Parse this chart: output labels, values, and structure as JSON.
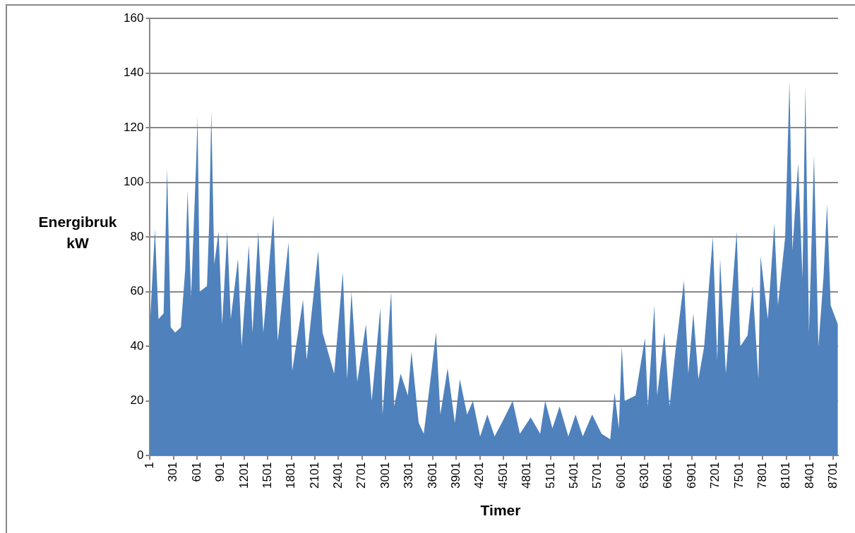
{
  "chart_data": {
    "type": "area",
    "xlabel": "Timer",
    "ylabel": "Energibruk kW",
    "xlim": [
      1,
      8760
    ],
    "xticks": [
      1,
      301,
      601,
      901,
      1201,
      1501,
      1801,
      2101,
      2401,
      2701,
      3001,
      3301,
      3601,
      3901,
      4201,
      4501,
      4801,
      5101,
      5401,
      5701,
      6001,
      6301,
      6601,
      6901,
      7201,
      7501,
      7801,
      8101,
      8401,
      8701
    ],
    "ylim": [
      0,
      160
    ],
    "yticks": [
      0,
      20,
      40,
      60,
      80,
      100,
      120,
      140,
      160
    ],
    "grid": "y",
    "legend": false,
    "series": [
      {
        "color": "#4f81bd",
        "x": [
          1,
          65,
          110,
          175,
          220,
          265,
          322,
          395,
          450,
          480,
          525,
          590,
          607,
          635,
          727,
          755,
          782,
          820,
          875,
          920,
          985,
          1030,
          1122,
          1168,
          1260,
          1306,
          1380,
          1444,
          1573,
          1628,
          1766,
          1812,
          1950,
          1996,
          2143,
          2198,
          2346,
          2456,
          2511,
          2566,
          2640,
          2750,
          2824,
          2934,
          2962,
          3072,
          3109,
          3192,
          3284,
          3330,
          3422,
          3486,
          3560,
          3643,
          3698,
          3790,
          3882,
          3946,
          4038,
          4112,
          4204,
          4296,
          4388,
          4480,
          4618,
          4710,
          4848,
          4968,
          5032,
          5124,
          5216,
          5327,
          5419,
          5511,
          5630,
          5750,
          5860,
          5915,
          5970,
          6007,
          6044,
          6182,
          6302,
          6339,
          6422,
          6458,
          6550,
          6615,
          6689,
          6799,
          6854,
          6918,
          6983,
          7056,
          7166,
          7222,
          7259,
          7332,
          7470,
          7516,
          7608,
          7673,
          7746,
          7774,
          7866,
          7949,
          7995,
          8087,
          8142,
          8179,
          8252,
          8307,
          8344,
          8390,
          8454,
          8510,
          8574,
          8620,
          8666,
          8758
        ],
        "values": [
          48,
          83,
          50,
          52,
          105,
          47,
          45,
          47,
          68,
          97,
          58,
          108,
          124,
          60,
          62,
          85,
          126,
          70,
          82,
          48,
          82,
          50,
          72,
          40,
          77,
          45,
          82,
          45,
          88,
          42,
          78,
          31,
          57,
          35,
          75,
          45,
          30,
          67,
          28,
          60,
          27,
          48,
          20,
          54,
          15,
          60,
          18,
          30,
          22,
          38,
          12,
          8,
          25,
          45,
          15,
          32,
          12,
          28,
          15,
          20,
          7,
          15,
          7,
          12,
          20,
          8,
          14,
          8,
          20,
          10,
          18,
          7,
          15,
          7,
          15,
          8,
          6,
          23,
          10,
          40,
          20,
          22,
          43,
          18,
          55,
          22,
          45,
          18,
          38,
          64,
          30,
          52,
          28,
          40,
          80,
          35,
          72,
          30,
          82,
          40,
          44,
          62,
          28,
          73,
          50,
          85,
          55,
          80,
          137,
          75,
          107,
          65,
          135,
          45,
          110,
          40,
          65,
          92,
          55,
          48
        ]
      }
    ]
  }
}
